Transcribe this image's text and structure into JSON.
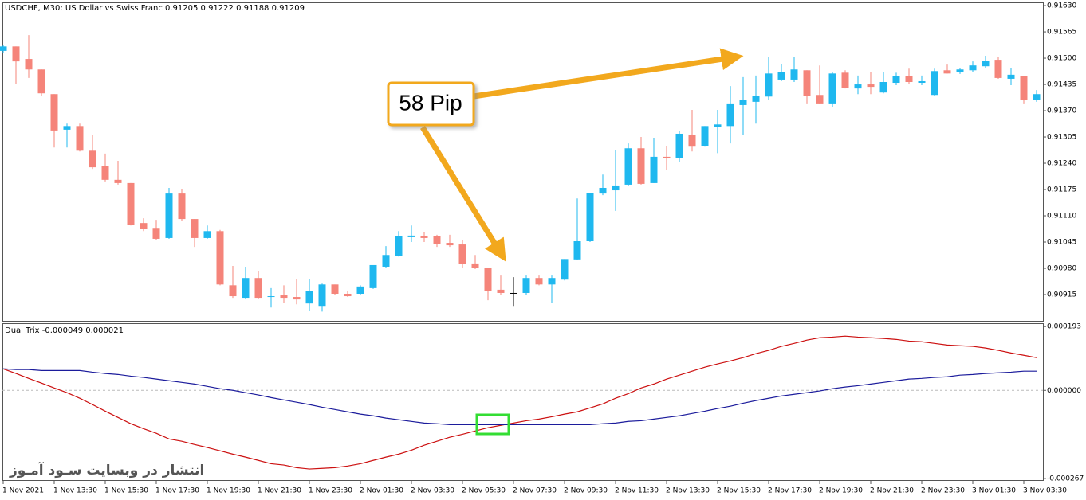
{
  "chart_data": [
    {
      "type": "candlestick",
      "title": "USDCHF, M30:  US Dollar vs Swiss Franc  0.91205 0.91222 0.91188 0.91209",
      "annotation": "58 Pip",
      "categories": [
        "1 Nov 2021",
        null,
        null,
        null,
        "1 Nov 13:30",
        null,
        null,
        null,
        "1 Nov 15:30",
        null,
        null,
        null,
        "1 Nov 17:30",
        null,
        null,
        null,
        "1 Nov 19:30",
        null,
        null,
        null,
        "1 Nov 21:30",
        null,
        null,
        null,
        "1 Nov 23:30",
        null,
        null,
        null,
        "2 Nov 01:30",
        null,
        null,
        null,
        "2 Nov 03:30",
        null,
        null,
        null,
        "2 Nov 05:30",
        null,
        null,
        null,
        "2 Nov 07:30",
        null,
        null,
        null,
        "2 Nov 09:30",
        null,
        null,
        null,
        "2 Nov 11:30",
        null,
        null,
        null,
        "2 Nov 13:30",
        null,
        null,
        null,
        "2 Nov 15:30",
        null,
        null,
        null,
        "2 Nov 17:30",
        null,
        null,
        null,
        "2 Nov 19:30",
        null,
        null,
        null,
        "2 Nov 21:30",
        null,
        null,
        null,
        "2 Nov 23:30",
        null,
        null,
        null,
        "3 Nov 01:30",
        null,
        null,
        null,
        "3 Nov 03:30",
        null
      ],
      "open": [
        0.91518,
        0.91529,
        0.91498,
        0.91472,
        0.91411,
        0.91323,
        0.91332,
        0.91271,
        0.91234,
        0.91199,
        0.91191,
        0.91092,
        0.9108,
        0.91055,
        0.91165,
        0.91102,
        0.91055,
        0.91072,
        0.90938,
        0.90907,
        0.90956,
        0.90909,
        0.90913,
        0.90909,
        0.90893,
        0.90887,
        0.9094,
        0.90917,
        0.90917,
        0.90931,
        0.90984,
        0.91011,
        0.91057,
        0.91059,
        0.91059,
        0.91043,
        0.91039,
        0.90992,
        0.90982,
        0.90927,
        0.90919,
        0.90919,
        0.90956,
        0.9094,
        0.90952,
        0.91002,
        0.91047,
        0.91165,
        0.91173,
        0.91187,
        0.91277,
        0.91191,
        0.91256,
        0.91252,
        0.91311,
        0.91283,
        0.91329,
        0.91332,
        0.91384,
        0.91392,
        0.91405,
        0.91447,
        0.91447,
        0.9147,
        0.91409,
        0.91388,
        0.91464,
        0.91425,
        0.91435,
        0.91415,
        0.91439,
        0.91455,
        0.91439,
        0.91409,
        0.9147,
        0.91466,
        0.9147,
        0.9148,
        0.91496,
        0.91449,
        0.91455,
        0.91396
      ],
      "high": [
        0.91533,
        0.91529,
        0.91557,
        0.91472,
        0.91411,
        0.91338,
        0.91338,
        0.91309,
        0.91264,
        0.91246,
        0.91191,
        0.91104,
        0.911,
        0.91179,
        0.91177,
        0.91102,
        0.91086,
        0.91075,
        0.90986,
        0.90984,
        0.90974,
        0.90931,
        0.90938,
        0.90954,
        0.90954,
        0.90942,
        0.9094,
        0.90923,
        0.90938,
        0.90988,
        0.91035,
        0.91072,
        0.91086,
        0.9107,
        0.91063,
        0.91063,
        0.91051,
        0.91013,
        0.90982,
        0.90962,
        0.90958,
        0.90962,
        0.90962,
        0.90962,
        0.91003,
        0.91153,
        0.91167,
        0.91212,
        0.91273,
        0.91289,
        0.91305,
        0.91303,
        0.91283,
        0.91319,
        0.91372,
        0.91332,
        0.91372,
        0.91431,
        0.91453,
        0.91457,
        0.91504,
        0.91486,
        0.91504,
        0.9147,
        0.91482,
        0.91466,
        0.9147,
        0.91457,
        0.91466,
        0.91466,
        0.91464,
        0.91474,
        0.91457,
        0.91474,
        0.91484,
        0.91476,
        0.91492,
        0.91506,
        0.91502,
        0.91476,
        0.91455,
        0.91421
      ],
      "low": [
        0.91514,
        0.91435,
        0.91451,
        0.91407,
        0.91279,
        0.91279,
        0.91269,
        0.91226,
        0.91195,
        0.91187,
        0.91086,
        0.91072,
        0.91049,
        0.91053,
        0.91098,
        0.91033,
        0.91053,
        0.90938,
        0.90907,
        0.90905,
        0.90905,
        0.90883,
        0.90895,
        0.90891,
        0.90875,
        0.90873,
        0.90915,
        0.90909,
        0.90915,
        0.90929,
        0.90982,
        0.91009,
        0.91045,
        0.91045,
        0.91033,
        0.91033,
        0.90982,
        0.90978,
        0.90901,
        0.90915,
        0.90887,
        0.90915,
        0.90938,
        0.90895,
        0.9095,
        0.91,
        0.91045,
        0.91161,
        0.91122,
        0.91183,
        0.91187,
        0.91191,
        0.91224,
        0.91244,
        0.91269,
        0.91281,
        0.91265,
        0.91289,
        0.91309,
        0.91338,
        0.91397,
        0.91443,
        0.91441,
        0.91388,
        0.91386,
        0.9138,
        0.91425,
        0.91411,
        0.91411,
        0.91413,
        0.91433,
        0.91435,
        0.91433,
        0.91407,
        0.91462,
        0.91461,
        0.91466,
        0.91476,
        0.91449,
        0.91433,
        0.91388,
        0.91392
      ],
      "close": [
        0.91529,
        0.91492,
        0.91472,
        0.91413,
        0.91321,
        0.91332,
        0.91271,
        0.9123,
        0.91199,
        0.91191,
        0.91088,
        0.91078,
        0.91053,
        0.91165,
        0.91102,
        0.91055,
        0.91072,
        0.9094,
        0.90911,
        0.90956,
        0.90907,
        0.90911,
        0.90907,
        0.90903,
        0.90923,
        0.9094,
        0.90917,
        0.90911,
        0.90935,
        0.90988,
        0.91013,
        0.91059,
        0.91061,
        0.91055,
        0.91041,
        0.91037,
        0.9099,
        0.90982,
        0.90923,
        0.90919,
        0.90919,
        0.90956,
        0.9094,
        0.90956,
        0.91003,
        0.91047,
        0.91167,
        0.91179,
        0.91185,
        0.91277,
        0.91189,
        0.91256,
        0.91252,
        0.91313,
        0.91281,
        0.91332,
        0.91336,
        0.91388,
        0.91397,
        0.91407,
        0.91462,
        0.91466,
        0.91472,
        0.91407,
        0.91388,
        0.91462,
        0.91427,
        0.91435,
        0.91429,
        0.91441,
        0.91455,
        0.91441,
        0.91443,
        0.91468,
        0.91462,
        0.91472,
        0.91482,
        0.91494,
        0.91451,
        0.91459,
        0.91396,
        0.91411
      ],
      "up_color": "#1fb8ef",
      "down_color": "#f5847a",
      "flat_color": "#000000",
      "ylim": [
        0.9085,
        0.91638
      ],
      "yticks": [
        {
          "value": 0.9163,
          "label": "0.91630"
        },
        {
          "value": 0.91565,
          "label": "0.91565"
        },
        {
          "value": 0.915,
          "label": "0.91500"
        },
        {
          "value": 0.91435,
          "label": "0.91435"
        },
        {
          "value": 0.9137,
          "label": "0.91370"
        },
        {
          "value": 0.91305,
          "label": "0.91305"
        },
        {
          "value": 0.9124,
          "label": "0.91240"
        },
        {
          "value": 0.91175,
          "label": "0.91175"
        },
        {
          "value": 0.9111,
          "label": "0.91110"
        },
        {
          "value": 0.91045,
          "label": "0.91045"
        },
        {
          "value": 0.9098,
          "label": "0.90980"
        },
        {
          "value": 0.90915,
          "label": "0.90915"
        }
      ],
      "grid": false
    },
    {
      "type": "line",
      "title": "Dual Trix -0.000049 0.000021",
      "series": [
        {
          "color": "#cc1010",
          "values": [
            6.5e-05,
            5.1e-05,
            3.6e-05,
            2.2e-05,
            7e-06,
            -7e-06,
            -2.4e-05,
            -4.3e-05,
            -6.3e-05,
            -8.2e-05,
            -0.000101,
            -0.000116,
            -0.00013,
            -0.000147,
            -0.000154,
            -0.000164,
            -0.000173,
            -0.000183,
            -0.000193,
            -0.000202,
            -0.000212,
            -0.000222,
            -0.000226,
            -0.000234,
            -0.000238,
            -0.000236,
            -0.000234,
            -0.000229,
            -0.000222,
            -0.000212,
            -0.000202,
            -0.000193,
            -0.000181,
            -0.000166,
            -0.000154,
            -0.000142,
            -0.000133,
            -0.000123,
            -0.000113,
            -0.000106,
            -9.9e-05,
            -9.2e-05,
            -8.7e-05,
            -8e-05,
            -7.2e-05,
            -6.5e-05,
            -5.3e-05,
            -4.1e-05,
            -2.4e-05,
            -1e-05,
            7e-06,
            1.9e-05,
            3.4e-05,
            4.6e-05,
            5.8e-05,
            7e-05,
            8e-05,
            8.9e-05,
            9.9e-05,
            0.000111,
            0.000121,
            0.000133,
            0.000142,
            0.000152,
            0.000159,
            0.000161,
            0.000164,
            0.000161,
            0.000159,
            0.000157,
            0.000154,
            0.000149,
            0.000147,
            0.000142,
            0.000137,
            0.000135,
            0.000133,
            0.000128,
            0.000121,
            0.000113,
            0.000106,
            9.9e-05
          ]
        },
        {
          "color": "#1c1c9c",
          "values": [
            6.5e-05,
            6.3e-05,
            6.3e-05,
            6e-05,
            6e-05,
            6e-05,
            6e-05,
            5.5e-05,
            5.1e-05,
            4.8e-05,
            4.3e-05,
            3.9e-05,
            3.4e-05,
            2.9e-05,
            2.4e-05,
            1.9e-05,
            1.2e-05,
            5e-06,
            0,
            -7e-06,
            -1.4e-05,
            -2.2e-05,
            -2.9e-05,
            -3.6e-05,
            -4.3e-05,
            -5.1e-05,
            -5.8e-05,
            -6.5e-05,
            -7.2e-05,
            -7.7e-05,
            -8.4e-05,
            -8.9e-05,
            -9.4e-05,
            -9.9e-05,
            -0.000101,
            -0.000104,
            -0.000104,
            -0.000104,
            -0.000104,
            -0.000104,
            -0.000104,
            -0.000104,
            -0.000104,
            -0.000104,
            -0.000104,
            -0.000104,
            -0.000104,
            -0.000101,
            -9.9e-05,
            -9.4e-05,
            -9.2e-05,
            -8.7e-05,
            -8.2e-05,
            -7.7e-05,
            -7e-05,
            -6.3e-05,
            -5.5e-05,
            -4.8e-05,
            -3.9e-05,
            -3.1e-05,
            -2.4e-05,
            -1.7e-05,
            -1.2e-05,
            -7e-06,
            -2e-06,
            5e-06,
            1e-05,
            1.4e-05,
            1.9e-05,
            2.4e-05,
            2.9e-05,
            3.4e-05,
            3.6e-05,
            3.9e-05,
            4.1e-05,
            4.6e-05,
            4.8e-05,
            5.1e-05,
            5.3e-05,
            5.5e-05,
            5.8e-05,
            5.8e-05
          ]
        }
      ],
      "ylim": [
        -0.000274,
        0.000203
      ],
      "yticks": [
        0.000193,
        {
          "value": 0,
          "label": "0.000000"
        },
        -0.000267
      ],
      "zero_line": true
    }
  ],
  "watermark": "انتشار در وبسایت  سـود آمـوز"
}
